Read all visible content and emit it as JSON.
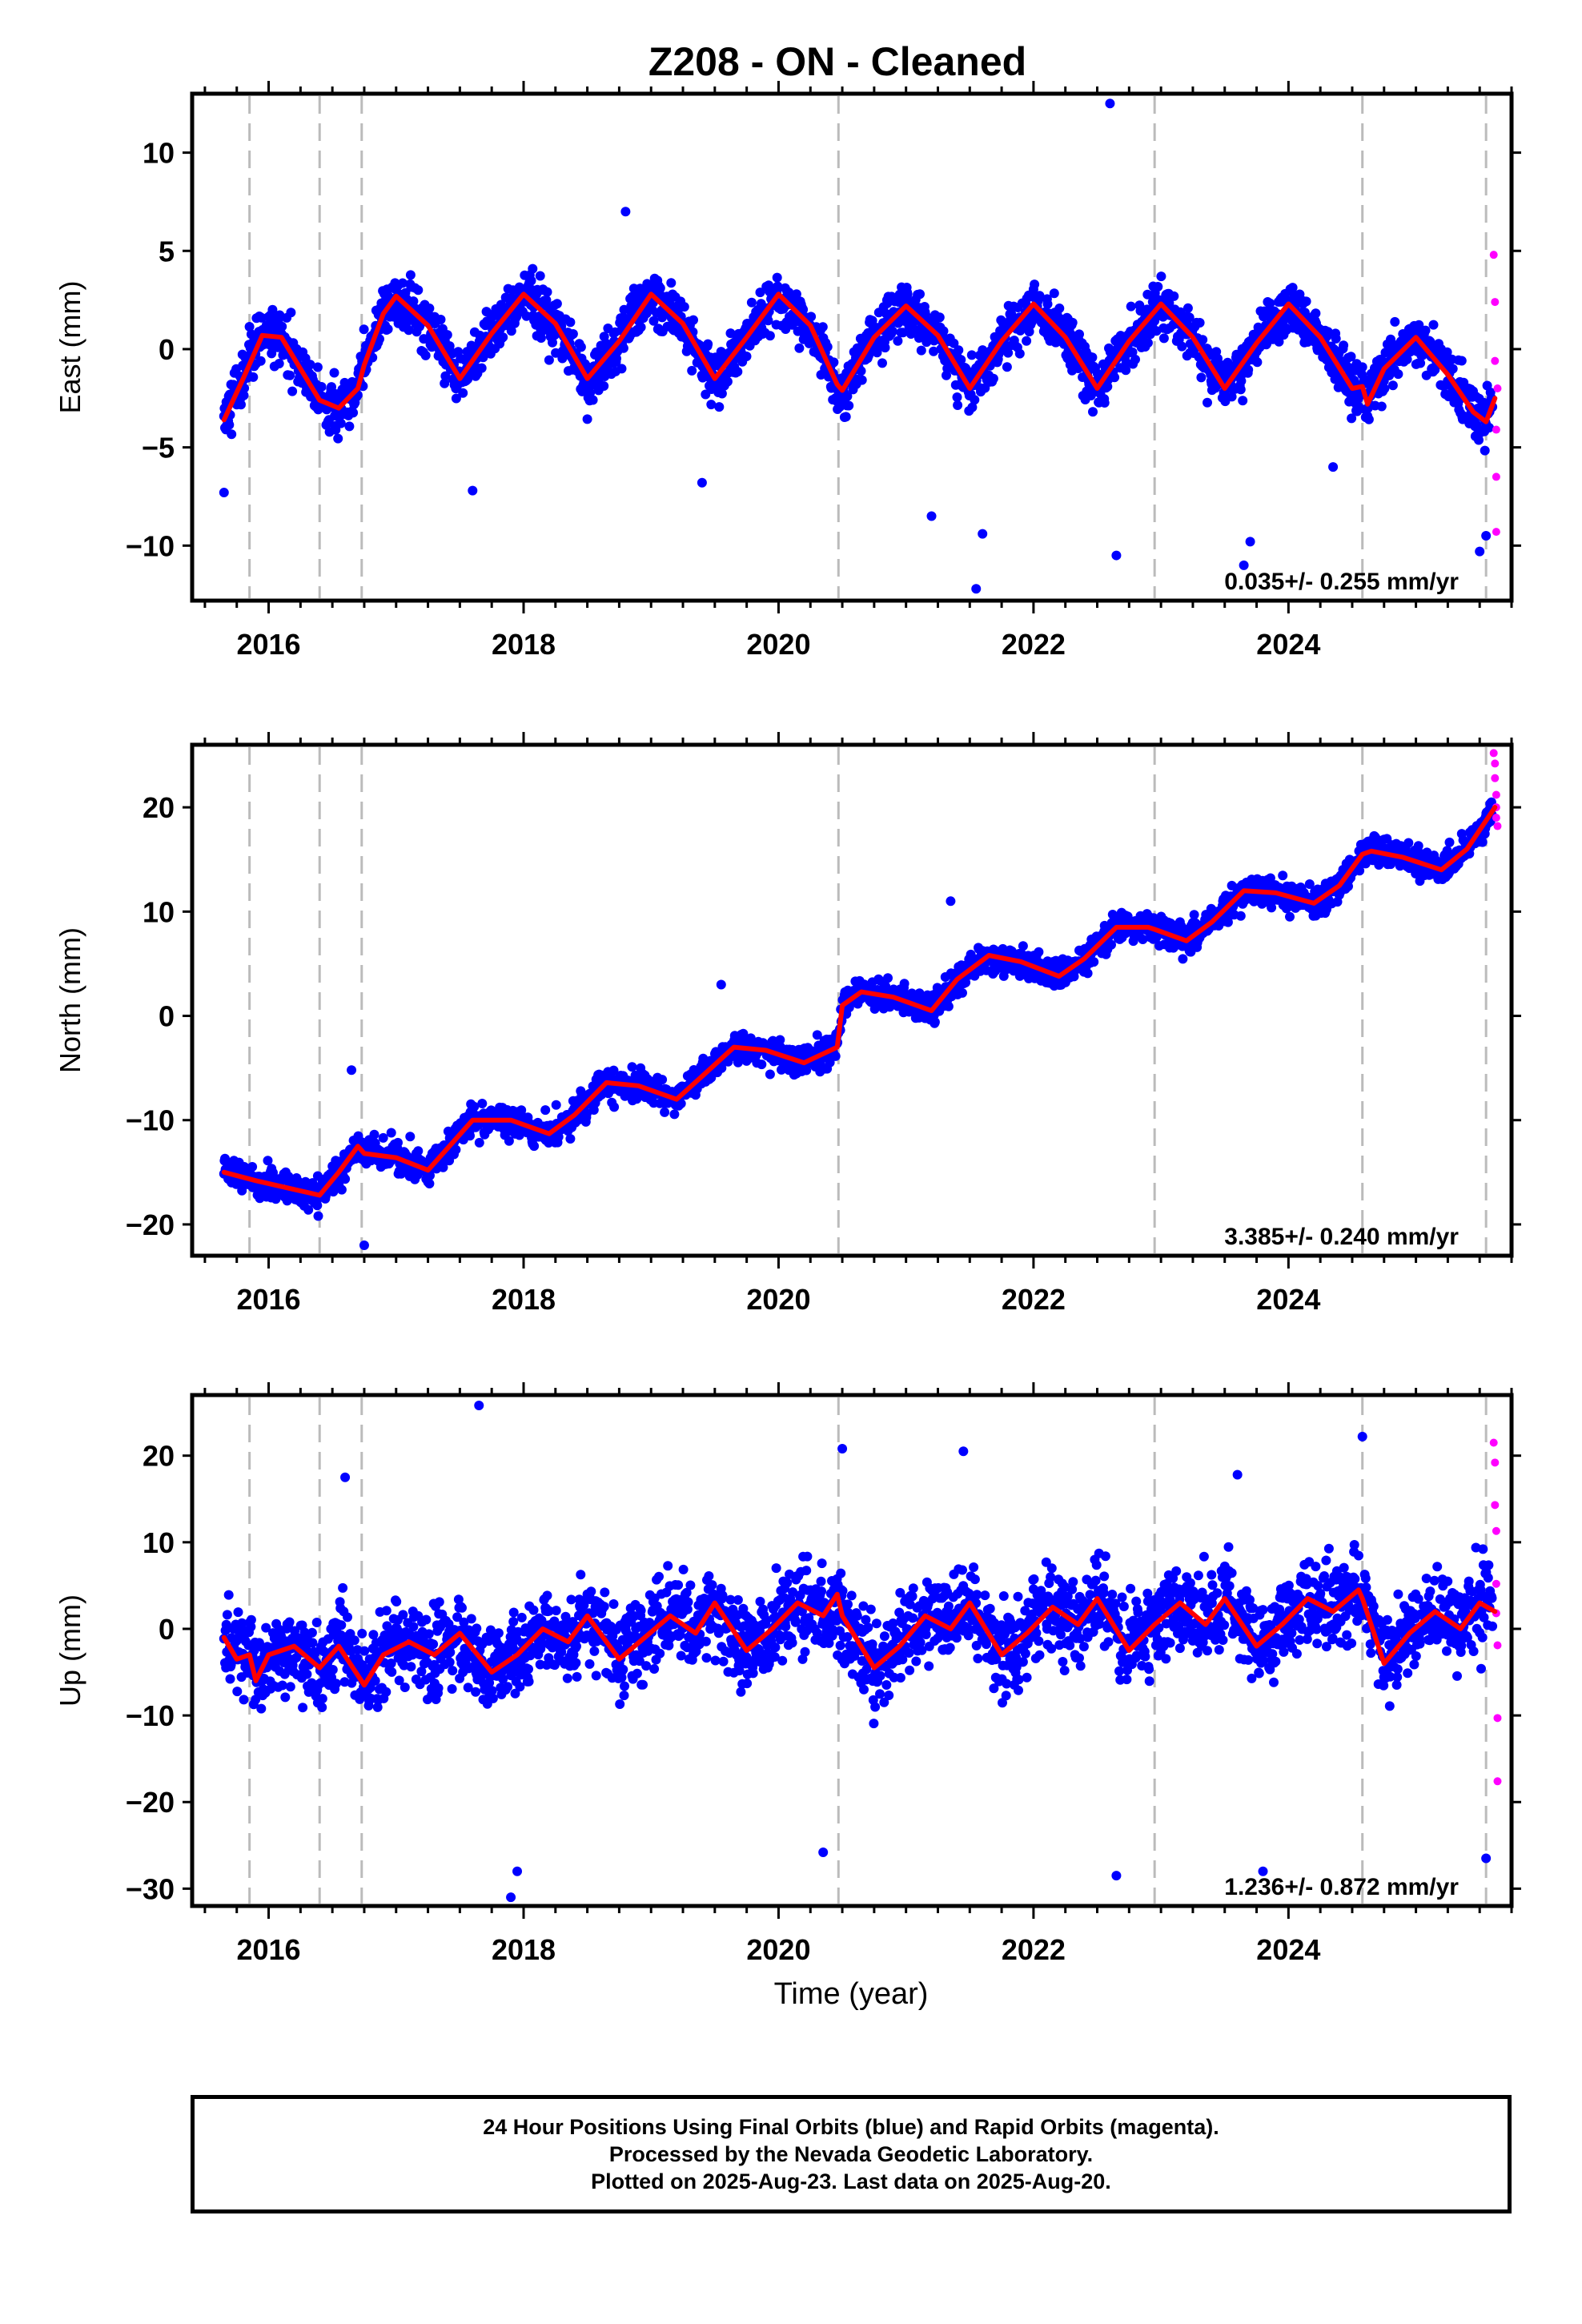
{
  "chart_data": {
    "type": "scatter",
    "title": "Z208  - ON - Cleaned",
    "xlabel": "Time (year)",
    "xlim": [
      2015.4,
      2025.75
    ],
    "xticks": [
      "2016",
      "2018",
      "2020",
      "2022",
      "2024"
    ],
    "colors": {
      "final": "#0000ff",
      "rapid": "#ff00ff",
      "model": "#ff0000",
      "events": "#bbbbbb"
    },
    "event_lines": [
      2015.85,
      2016.4,
      2016.73,
      2020.47,
      2022.95,
      2024.58,
      2025.55
    ],
    "panels": [
      {
        "ylabel": "East (mm)",
        "ylim": [
          -12.8,
          13
        ],
        "yticks": [
          10,
          5,
          0,
          -5,
          -10
        ],
        "velocity": "0.035+/- 0.255 mm/yr",
        "model_curve": {
          "x": [
            2015.65,
            2015.8,
            2015.95,
            2016.1,
            2016.25,
            2016.4,
            2016.55,
            2016.7,
            2016.75,
            2016.9,
            2017.0,
            2017.25,
            2017.5,
            2017.75,
            2018.0,
            2018.25,
            2018.5,
            2018.75,
            2019.0,
            2019.25,
            2019.5,
            2019.75,
            2020.0,
            2020.25,
            2020.46,
            2020.5,
            2020.75,
            2021.0,
            2021.25,
            2021.5,
            2021.75,
            2022.0,
            2022.25,
            2022.5,
            2022.75,
            2023.0,
            2023.25,
            2023.5,
            2023.75,
            2024.0,
            2024.25,
            2024.5,
            2024.58,
            2024.62,
            2024.75,
            2025.0,
            2025.25,
            2025.45,
            2025.55,
            2025.62
          ],
          "y": [
            -3.6,
            -1.5,
            0.7,
            0.6,
            -1.0,
            -2.6,
            -3.0,
            -2.0,
            -0.8,
            1.8,
            2.7,
            1.2,
            -1.5,
            0.8,
            2.8,
            1.3,
            -1.5,
            0.4,
            2.8,
            1.3,
            -1.5,
            0.6,
            2.8,
            1.2,
            -1.8,
            -2.1,
            0.6,
            2.2,
            0.7,
            -2.0,
            0.4,
            2.3,
            0.6,
            -2.0,
            0.4,
            2.3,
            0.6,
            -2.0,
            0.3,
            2.3,
            0.6,
            -2.0,
            -1.9,
            -2.8,
            -1.0,
            0.6,
            -1.3,
            -3.2,
            -3.7,
            -2.5
          ]
        },
        "rapid_points": {
          "x": [
            2025.61,
            2025.62,
            2025.62,
            2025.63,
            2025.63,
            2025.63,
            2025.64
          ],
          "y": [
            4.8,
            2.4,
            -0.6,
            -4.1,
            -6.5,
            -9.3,
            -2.0
          ]
        },
        "outliers": {
          "x": [
            2015.65,
            2017.6,
            2018.8,
            2019.4,
            2021.2,
            2021.55,
            2021.6,
            2022.6,
            2022.65,
            2023.65,
            2023.7,
            2024.35,
            2025.5,
            2025.55
          ],
          "y": [
            -7.3,
            -7.2,
            7.0,
            -6.8,
            -8.5,
            -12.2,
            -9.4,
            12.5,
            -10.5,
            -11.0,
            -9.8,
            -6.0,
            -10.3,
            -9.5
          ]
        }
      },
      {
        "ylabel": "North (mm)",
        "ylim": [
          -23,
          26
        ],
        "yticks": [
          20,
          10,
          0,
          -10,
          -20
        ],
        "velocity": "3.385+/- 0.240 mm/yr",
        "model_curve": {
          "x": [
            2015.65,
            2015.9,
            2016.15,
            2016.4,
            2016.55,
            2016.7,
            2016.75,
            2017.0,
            2017.25,
            2017.6,
            2017.9,
            2018.2,
            2018.4,
            2018.65,
            2018.9,
            2019.2,
            2019.4,
            2019.65,
            2019.9,
            2020.2,
            2020.46,
            2020.5,
            2020.65,
            2020.9,
            2021.2,
            2021.4,
            2021.65,
            2021.9,
            2022.2,
            2022.4,
            2022.65,
            2022.9,
            2022.95,
            2023.2,
            2023.4,
            2023.65,
            2023.9,
            2024.2,
            2024.4,
            2024.58,
            2024.65,
            2024.9,
            2025.2,
            2025.4,
            2025.62
          ],
          "y": [
            -15.0,
            -15.8,
            -16.5,
            -17.2,
            -15.0,
            -12.5,
            -13.2,
            -13.6,
            -14.8,
            -10.0,
            -10.0,
            -11.3,
            -9.5,
            -6.4,
            -6.7,
            -8.0,
            -5.8,
            -3.0,
            -3.3,
            -4.5,
            -3.0,
            1.0,
            2.3,
            1.8,
            0.5,
            3.5,
            5.8,
            5.2,
            3.8,
            5.5,
            8.5,
            8.5,
            8.3,
            7.2,
            9.0,
            12.0,
            11.8,
            10.8,
            12.5,
            15.5,
            15.8,
            15.2,
            14.0,
            16.0,
            20.0
          ]
        },
        "rapid_points": {
          "x": [
            2025.61,
            2025.62,
            2025.62,
            2025.63,
            2025.63,
            2025.63,
            2025.64
          ],
          "y": [
            25.2,
            24.2,
            22.8,
            21.2,
            20.0,
            19.0,
            18.2
          ]
        },
        "outliers": {
          "x": [
            2016.75,
            2016.65,
            2019.55,
            2021.35,
            2024.3
          ],
          "y": [
            -22.0,
            -5.2,
            3.0,
            11.0,
            11.0
          ]
        }
      },
      {
        "ylabel": "Up (mm)",
        "ylim": [
          -32,
          27
        ],
        "yticks": [
          20,
          10,
          0,
          -10,
          -20,
          -30
        ],
        "velocity": "1.236+/- 0.872 mm/yr",
        "model_curve": {
          "x": [
            2015.65,
            2015.75,
            2015.85,
            2015.9,
            2016.0,
            2016.2,
            2016.4,
            2016.55,
            2016.75,
            2016.9,
            2017.1,
            2017.3,
            2017.5,
            2017.75,
            2017.95,
            2018.15,
            2018.35,
            2018.5,
            2018.75,
            2018.95,
            2019.15,
            2019.35,
            2019.5,
            2019.75,
            2019.95,
            2020.15,
            2020.35,
            2020.46,
            2020.5,
            2020.75,
            2020.95,
            2021.15,
            2021.35,
            2021.5,
            2021.75,
            2021.95,
            2022.15,
            2022.35,
            2022.5,
            2022.75,
            2022.95,
            2023.15,
            2023.35,
            2023.5,
            2023.75,
            2023.95,
            2024.15,
            2024.35,
            2024.55,
            2024.58,
            2024.75,
            2024.95,
            2025.15,
            2025.35,
            2025.5,
            2025.62
          ],
          "y": [
            -1.0,
            -3.5,
            -3.0,
            -6.0,
            -3.0,
            -2.0,
            -4.5,
            -2.0,
            -6.5,
            -3.0,
            -1.5,
            -3.0,
            -0.5,
            -5.0,
            -3.0,
            0.0,
            -1.5,
            1.5,
            -3.5,
            -1.0,
            1.5,
            -0.5,
            3.0,
            -2.5,
            0.0,
            3.0,
            1.5,
            4.0,
            1.5,
            -4.5,
            -2.0,
            1.5,
            0.0,
            3.0,
            -3.0,
            -0.5,
            2.5,
            0.5,
            3.5,
            -2.5,
            0.5,
            3.0,
            0.5,
            3.5,
            -2.0,
            0.5,
            3.5,
            2.0,
            4.5,
            3.5,
            -4.0,
            -0.5,
            2.0,
            0.0,
            3.0,
            2.0
          ]
        },
        "rapid_points": {
          "x": [
            2025.61,
            2025.62,
            2025.62,
            2025.63,
            2025.63,
            2025.63,
            2025.64,
            2025.64,
            2025.64
          ],
          "y": [
            21.5,
            19.2,
            14.3,
            11.3,
            5.2,
            1.8,
            -1.9,
            -10.3,
            -17.6
          ]
        },
        "outliers": {
          "x": [
            2017.65,
            2017.9,
            2020.5,
            2021.45,
            2023.6,
            2024.58,
            2016.6,
            2017.95,
            2020.35,
            2022.65,
            2023.8,
            2025.55
          ],
          "y": [
            25.8,
            -31.0,
            20.8,
            20.5,
            17.8,
            22.2,
            17.5,
            -28.0,
            -25.8,
            -28.5,
            -28.0,
            -26.5
          ]
        }
      }
    ]
  },
  "caption": {
    "line1": "24 Hour Positions Using Final Orbits (blue) and Rapid Orbits (magenta).",
    "line2": "Processed by the Nevada Geodetic Laboratory.",
    "line3": "Plotted on 2025-Aug-23. Last data on 2025-Aug-20."
  }
}
